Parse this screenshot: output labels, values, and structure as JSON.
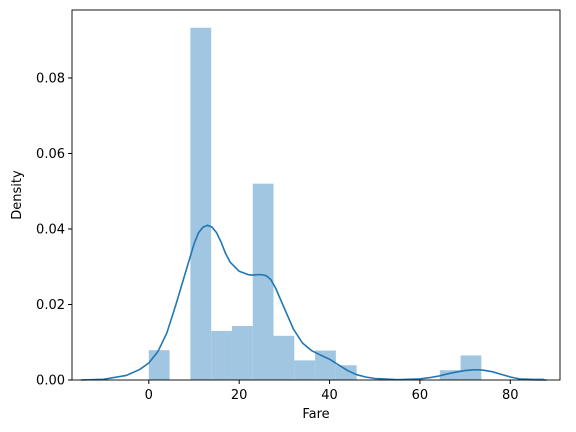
{
  "chart_data": {
    "type": "bar",
    "xlabel": "Fare",
    "ylabel": "Density",
    "xlim": [
      -17,
      91
    ],
    "ylim": [
      0,
      0.098
    ],
    "x_ticks": [
      0,
      20,
      40,
      60,
      80
    ],
    "x_tick_labels": [
      "0",
      "20",
      "40",
      "60",
      "80"
    ],
    "y_ticks": [
      0,
      0.02,
      0.04,
      0.06,
      0.08
    ],
    "y_tick_labels": [
      "0.00",
      "0.02",
      "0.04",
      "0.06",
      "0.08"
    ],
    "grid": false,
    "colors": {
      "bars": "#a1c6e1",
      "kde": "#1f77b4",
      "axis": "#000000"
    },
    "histogram": {
      "bins": [
        {
          "x0": 0.0,
          "x1": 4.6,
          "density": 0.0079
        },
        {
          "x0": 4.6,
          "x1": 9.2,
          "density": 0.0
        },
        {
          "x0": 9.2,
          "x1": 13.8,
          "density": 0.0933
        },
        {
          "x0": 13.8,
          "x1": 18.4,
          "density": 0.013
        },
        {
          "x0": 18.4,
          "x1": 23.0,
          "density": 0.0143
        },
        {
          "x0": 23.0,
          "x1": 27.6,
          "density": 0.052
        },
        {
          "x0": 27.6,
          "x1": 32.2,
          "density": 0.0117
        },
        {
          "x0": 32.2,
          "x1": 36.8,
          "density": 0.0052
        },
        {
          "x0": 36.8,
          "x1": 41.4,
          "density": 0.0078
        },
        {
          "x0": 41.4,
          "x1": 46.0,
          "density": 0.0039
        },
        {
          "x0": 46.0,
          "x1": 50.6,
          "density": 0.0
        },
        {
          "x0": 50.6,
          "x1": 55.2,
          "density": 0.0
        },
        {
          "x0": 55.2,
          "x1": 59.8,
          "density": 0.0
        },
        {
          "x0": 59.8,
          "x1": 64.4,
          "density": 0.0
        },
        {
          "x0": 64.4,
          "x1": 69.0,
          "density": 0.0026
        },
        {
          "x0": 69.0,
          "x1": 73.6,
          "density": 0.0065
        },
        {
          "x0": 73.6,
          "x1": 78.2,
          "density": 0.0
        },
        {
          "x0": 78.2,
          "x1": 82.8,
          "density": 0.0
        },
        {
          "x0": 82.8,
          "x1": 87.4,
          "density": 0.0005
        }
      ]
    },
    "kde": {
      "x": [
        -15,
        -10,
        -5,
        -2,
        0,
        2,
        4,
        6,
        8,
        10,
        11,
        12,
        13,
        14,
        15,
        16,
        17,
        18,
        20,
        22,
        23,
        24,
        25,
        26,
        27,
        28,
        30,
        32,
        34,
        36,
        38,
        40,
        42,
        44,
        46,
        48,
        50,
        55,
        60,
        62,
        64,
        66,
        68,
        70,
        72,
        73,
        74,
        76,
        78,
        80,
        82,
        85,
        88
      ],
      "y": [
        0.0,
        0.0002,
        0.0012,
        0.0028,
        0.0045,
        0.0075,
        0.0125,
        0.02,
        0.028,
        0.036,
        0.039,
        0.0405,
        0.041,
        0.0405,
        0.039,
        0.0365,
        0.0335,
        0.0312,
        0.0288,
        0.0279,
        0.0278,
        0.0279,
        0.0279,
        0.0276,
        0.0266,
        0.0245,
        0.019,
        0.0135,
        0.0098,
        0.0078,
        0.0066,
        0.0055,
        0.004,
        0.0025,
        0.0014,
        0.0008,
        0.0004,
        0.0001,
        0.0003,
        0.0006,
        0.001,
        0.0016,
        0.0021,
        0.0025,
        0.0027,
        0.0027,
        0.0026,
        0.0022,
        0.0015,
        0.0008,
        0.0003,
        5e-05,
        0.0
      ]
    }
  }
}
